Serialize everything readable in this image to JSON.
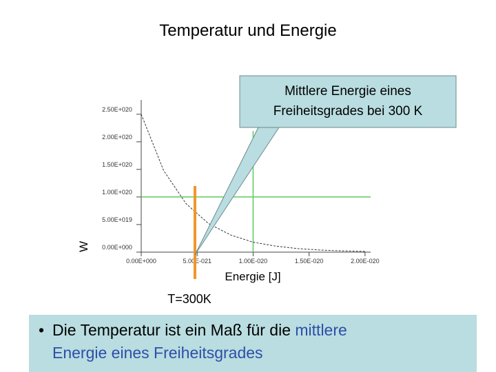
{
  "title": "Temperatur und Energie",
  "callout": [
    "Mittlere Energie eines",
    "Freiheitsgrades bei 300 K"
  ],
  "marker_label": "T=300K",
  "bullet": {
    "text": "Die Temperatur ist ein Maß für die",
    "highlight_1": "mittlere",
    "highlight_2": "Energie eines Freiheitsgrades"
  },
  "chart_data": {
    "type": "line",
    "x_label": "Energie [J]",
    "y_label": "W",
    "x": [
      0,
      2e-21,
      4e-21,
      6e-21,
      8e-21,
      1e-20,
      1.2e-20,
      1.4e-20,
      1.6e-20,
      1.8e-20,
      2e-20
    ],
    "series": [
      {
        "name": "W",
        "color": "#333333",
        "values": [
          2.5e+20,
          1.48e+20,
          8.8e+19,
          5.2e+19,
          3.1e+19,
          1.8e+19,
          1.1e+19,
          6.4e+18,
          3.8e+18,
          2.3e+18,
          1.3e+18
        ]
      }
    ],
    "xlim": [
      0,
      2.05e-20
    ],
    "ylim": [
      0,
      2.76e+20
    ],
    "xticks": [
      {
        "value": 0,
        "label": "0.00E+000"
      },
      {
        "value": 5e-21,
        "label": "5.00E-021"
      },
      {
        "value": 1e-20,
        "label": "1.00E-020"
      },
      {
        "value": 1.5e-20,
        "label": "1.50E-020"
      },
      {
        "value": 2e-20,
        "label": "2.00E-020"
      }
    ],
    "yticks": [
      {
        "value": 0,
        "label": "0.00E+000"
      },
      {
        "value": 5e+19,
        "label": "5.00E+019"
      },
      {
        "value": 1e+20,
        "label": "1.00E+020"
      },
      {
        "value": 1.5e+20,
        "label": "1.50E+020"
      },
      {
        "value": 2e+20,
        "label": "2.00E+020"
      },
      {
        "value": 2.5e+20,
        "label": "2.50E+020"
      }
    ],
    "reference_x": 1e-20,
    "reference_y": 1e+20,
    "reference_color": "#5ccc5c",
    "marker_x": 4.8e-21,
    "marker_color": "#f0962a"
  }
}
